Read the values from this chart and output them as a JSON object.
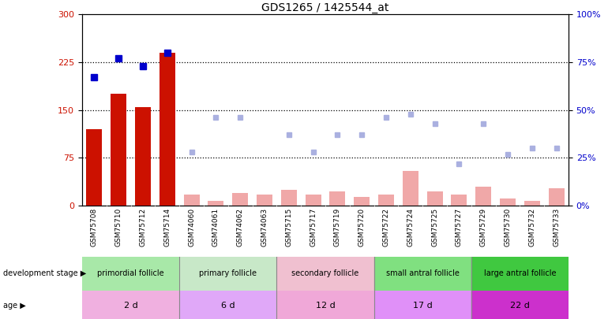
{
  "title": "GDS1265 / 1425544_at",
  "samples": [
    "GSM75708",
    "GSM75710",
    "GSM75712",
    "GSM75714",
    "GSM74060",
    "GSM74061",
    "GSM74062",
    "GSM74063",
    "GSM75715",
    "GSM75717",
    "GSM75719",
    "GSM75720",
    "GSM75722",
    "GSM75724",
    "GSM75725",
    "GSM75727",
    "GSM75729",
    "GSM75730",
    "GSM75732",
    "GSM75733"
  ],
  "count_values": [
    120,
    175,
    155,
    240,
    null,
    null,
    null,
    null,
    null,
    null,
    null,
    null,
    null,
    null,
    null,
    null,
    null,
    null,
    null,
    null
  ],
  "percentile_rank": [
    67,
    77,
    73,
    80,
    null,
    null,
    null,
    null,
    null,
    null,
    null,
    null,
    null,
    null,
    null,
    null,
    null,
    null,
    null,
    null
  ],
  "value_absent": [
    null,
    null,
    null,
    null,
    18,
    8,
    20,
    17,
    25,
    18,
    22,
    14,
    18,
    55,
    22,
    18,
    30,
    12,
    8,
    28
  ],
  "rank_absent_pct": [
    null,
    null,
    null,
    null,
    28,
    46,
    46,
    null,
    37,
    28,
    37,
    37,
    46,
    48,
    43,
    22,
    43,
    27,
    30,
    30
  ],
  "dev_stages": [
    {
      "label": "primordial follicle",
      "start": 0,
      "end": 3,
      "color": "#a8e8a8"
    },
    {
      "label": "primary follicle",
      "start": 4,
      "end": 7,
      "color": "#c8e8c8"
    },
    {
      "label": "secondary follicle",
      "start": 8,
      "end": 11,
      "color": "#f0c0d0"
    },
    {
      "label": "small antral follicle",
      "start": 12,
      "end": 15,
      "color": "#80e080"
    },
    {
      "label": "large antral follicle",
      "start": 16,
      "end": 19,
      "color": "#40c840"
    }
  ],
  "age_stages": [
    {
      "label": "2 d",
      "start": 0,
      "end": 3,
      "color": "#f0b0e0"
    },
    {
      "label": "6 d",
      "start": 4,
      "end": 7,
      "color": "#e0a8f8"
    },
    {
      "label": "12 d",
      "start": 8,
      "end": 11,
      "color": "#f0a8d8"
    },
    {
      "label": "17 d",
      "start": 12,
      "end": 15,
      "color": "#e090f8"
    },
    {
      "label": "22 d",
      "start": 16,
      "end": 19,
      "color": "#cc30cc"
    }
  ],
  "ylim_left": [
    0,
    300
  ],
  "ylim_right": [
    0,
    100
  ],
  "yticks_left": [
    0,
    75,
    150,
    225,
    300
  ],
  "yticks_right": [
    0,
    25,
    50,
    75,
    100
  ],
  "bar_color_count": "#cc1100",
  "bar_color_value_absent": "#f0a8a8",
  "dot_color_percentile": "#0000cc",
  "dot_color_rank_absent": "#aab0e0",
  "bg_color": "#ffffff",
  "grid_color": "#000000",
  "xtick_bg": "#d8d8d8"
}
